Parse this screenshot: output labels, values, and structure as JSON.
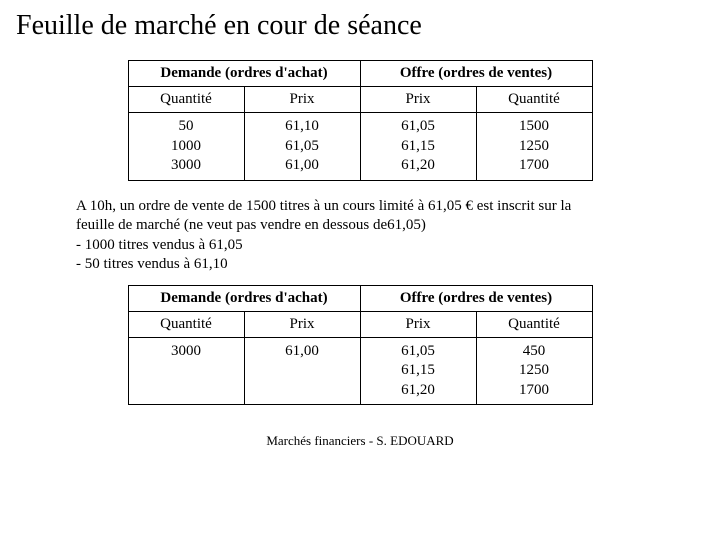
{
  "title": "Feuille de marché en cour de séance",
  "footer": "Marchés financiers - S. EDOUARD",
  "labels": {
    "demande": "Demande (ordres d'achat)",
    "offre": "Offre (ordres de ventes)",
    "quantite": "Quantité",
    "prix": "Prix"
  },
  "table1": {
    "bid": {
      "qty": [
        "50",
        "1000",
        "3000"
      ],
      "price": [
        "61,10",
        "61,05",
        "61,00"
      ]
    },
    "ask": {
      "price": [
        "61,05",
        "61,15",
        "61,20"
      ],
      "qty": [
        "1500",
        "1250",
        "1700"
      ]
    }
  },
  "narrative": {
    "l1": "A 10h, un ordre de vente de 1500 titres à un cours limité à 61,05 € est inscrit sur la",
    "l2": "feuille de marché (ne veut pas vendre en dessous de61,05)",
    "l3": "-  1000 titres vendus à 61,05",
    "l4": "-  50 titres vendus à 61,10"
  },
  "table2": {
    "bid": {
      "qty": [
        "3000"
      ],
      "price": [
        "61,00"
      ]
    },
    "ask": {
      "price": [
        "61,05",
        "61,15",
        "61,20"
      ],
      "qty": [
        "450",
        "1250",
        "1700"
      ]
    }
  },
  "style": {
    "border_color": "#000000",
    "background_color": "#ffffff",
    "title_fontsize": 28,
    "body_fontsize": 15,
    "footer_fontsize": 13,
    "font_family": "Times New Roman"
  }
}
